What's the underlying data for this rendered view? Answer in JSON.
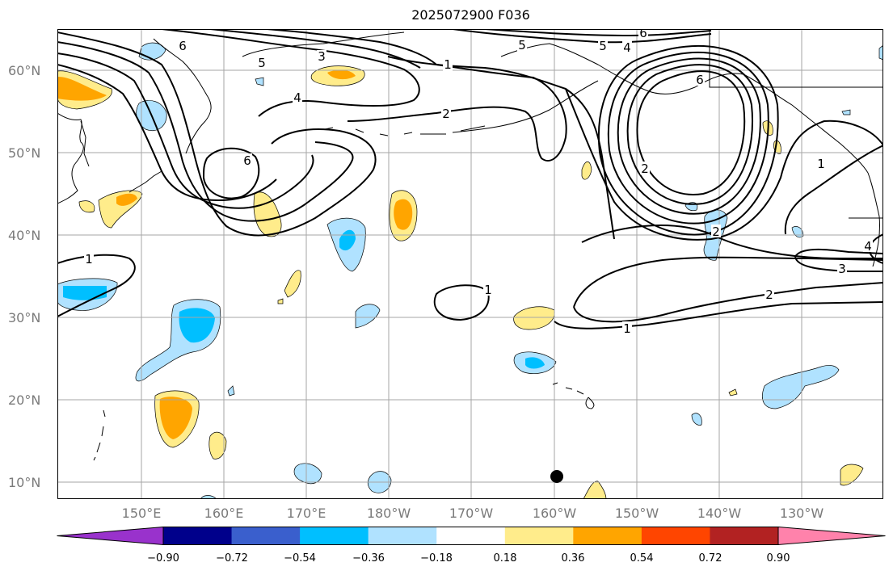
{
  "title": "2025072900 F036",
  "lat_labels": [
    "60°N",
    "50°N",
    "40°N",
    "30°N",
    "20°N",
    "10°N"
  ],
  "lon_labels": [
    "150°E",
    "160°E",
    "170°E",
    "180°W",
    "170°W",
    "160°W",
    "150°W",
    "140°W",
    "130°W"
  ],
  "colorbar": {
    "tick_labels": [
      "−0.90",
      "−0.72",
      "−0.54",
      "−0.36",
      "−0.18",
      "0.18",
      "0.36",
      "0.54",
      "0.72",
      "0.90"
    ],
    "colors": [
      "#9932cc",
      "#00008b",
      "#3a5fcd",
      "#00bfff",
      "#b0e2ff",
      "#ffffff",
      "#ffec8b",
      "#ffa500",
      "#ff4500",
      "#b22222",
      "#ff82ab"
    ]
  },
  "contour_labels": [
    "6",
    "5",
    "3",
    "1",
    "6",
    "5",
    "4",
    "2",
    "2",
    "1",
    "4",
    "6",
    "6",
    "5",
    "2",
    "1",
    "1",
    "2",
    "3",
    "1",
    "4"
  ],
  "marker": "black-dot"
}
